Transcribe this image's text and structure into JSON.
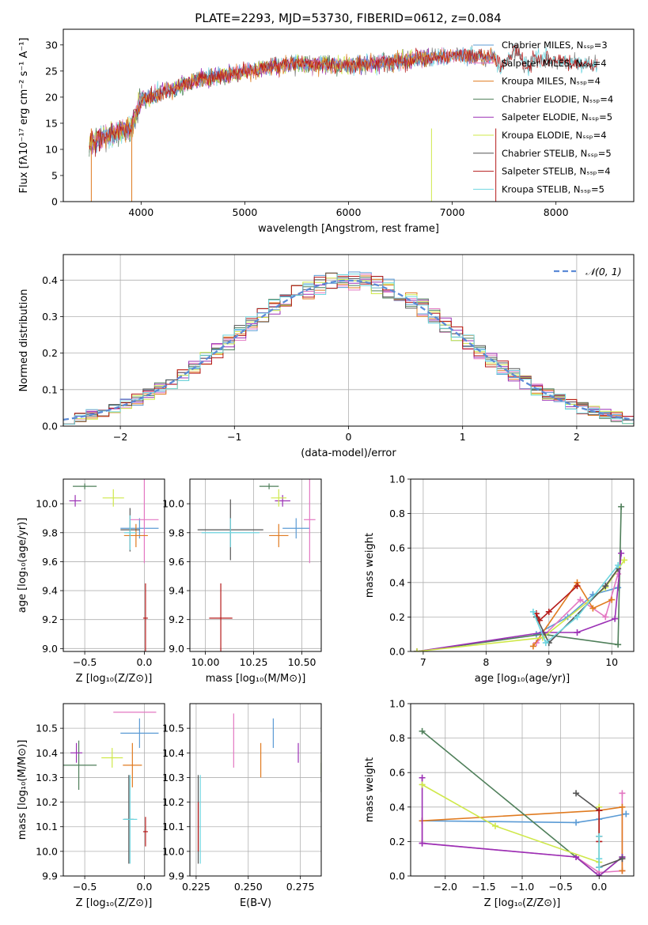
{
  "figure": {
    "title": "PLATE=2293, MJD=53730, FIBERID=0612, z=0.084"
  },
  "colors": {
    "Chabrier MILES": "#5b9bd5",
    "Salpeter MILES": "#e377c2",
    "Kroupa MILES": "#e07b20",
    "Chabrier ELODIE": "#4f7f5a",
    "Salpeter ELODIE": "#9b30b5",
    "Kroupa ELODIE": "#cfe84a",
    "Chabrier STELIB": "#555555",
    "Salpeter STELIB": "#b51a1a",
    "Kroupa STELIB": "#6fd6e0",
    "normal_curve": "#5b8ad6"
  },
  "chart_data": [
    {
      "id": "spectrum",
      "type": "line",
      "title": "PLATE=2293, MJD=53730, FIBERID=0612, z=0.084",
      "xlabel": "wavelength [Angstrom, rest frame]",
      "ylabel": "Flux [fλ10⁻¹⁷ erg cm⁻² s⁻¹ A⁻¹]",
      "xlim": [
        3250,
        8750
      ],
      "ylim": [
        0,
        33
      ],
      "xticks": [
        4000,
        5000,
        6000,
        7000,
        8000
      ],
      "yticks": [
        0,
        5,
        10,
        15,
        20,
        25,
        30
      ],
      "grid": false,
      "legend_position": "top-right",
      "legend": [
        "Chabrier MILES, N_SSP=3",
        "Salpeter MILES, N_SSP=4",
        "Kroupa MILES, N_SSP=4",
        "Chabrier ELODIE, N_SSP=4",
        "Salpeter ELODIE, N_SSP=5",
        "Kroupa ELODIE, N_SSP=4",
        "Chabrier STELIB, N_SSP=5",
        "Salpeter STELIB, N_SSP=4",
        "Kroupa STELIB, N_SSP=5"
      ],
      "continuum_x": [
        3500,
        3700,
        3900,
        4000,
        4300,
        4500,
        5000,
        5500,
        6000,
        6500,
        7000,
        7400,
        8000,
        8400
      ],
      "continuum_y": [
        11,
        13,
        14,
        19.5,
        21.5,
        23,
        25,
        26.5,
        26,
        27,
        28,
        27.5,
        27,
        26
      ]
    },
    {
      "id": "residuals",
      "type": "histogram",
      "xlabel": "(data-model)/error",
      "ylabel": "Normed distribution",
      "xlim": [
        -2.5,
        2.5
      ],
      "ylim": [
        0,
        0.47
      ],
      "xticks": [
        -2,
        -1,
        0,
        1,
        2
      ],
      "yticks": [
        0.0,
        0.1,
        0.2,
        0.3,
        0.4
      ],
      "grid": true,
      "legend_position": "top-right",
      "legend": [
        "𝒩(0, 1)"
      ],
      "bin_width": 0.1
    },
    {
      "id": "age_vs_Z",
      "type": "scatter",
      "xlabel": "Z [log₁₀(Z/Z⊙)]",
      "ylabel": "age  [log₁₀(age/yr)]",
      "xlim": [
        -0.68,
        0.17
      ],
      "ylim": [
        8.98,
        10.17
      ],
      "xticks": [
        -0.5,
        0.0
      ],
      "yticks": [
        9.0,
        9.2,
        9.4,
        9.6,
        9.8,
        10.0
      ],
      "grid": true,
      "points": [
        {
          "model": "Chabrier MILES",
          "x": -0.04,
          "y": 9.83,
          "xerr": 0.16,
          "yerr": 0.07
        },
        {
          "model": "Salpeter MILES",
          "x": 0.0,
          "y": 9.89,
          "xerr": 0.12,
          "yerr": 0.3
        },
        {
          "model": "Kroupa MILES",
          "x": -0.07,
          "y": 9.78,
          "xerr": 0.1,
          "yerr": 0.08
        },
        {
          "model": "Chabrier ELODIE",
          "x": -0.5,
          "y": 10.12,
          "xerr": 0.1,
          "yerr": 0.02
        },
        {
          "model": "Salpeter ELODIE",
          "x": -0.58,
          "y": 10.02,
          "xerr": 0.05,
          "yerr": 0.04
        },
        {
          "model": "Kroupa ELODIE",
          "x": -0.26,
          "y": 10.04,
          "xerr": 0.09,
          "yerr": 0.06
        },
        {
          "model": "Chabrier STELIB",
          "x": -0.12,
          "y": 9.82,
          "xerr": 0.08,
          "yerr": 0.15
        },
        {
          "model": "Salpeter STELIB",
          "x": 0.01,
          "y": 9.21,
          "xerr": 0.02,
          "yerr": 0.24
        },
        {
          "model": "Kroupa STELIB",
          "x": -0.12,
          "y": 9.8,
          "xerr": 0.05,
          "yerr": 0.12
        }
      ]
    },
    {
      "id": "age_vs_mass",
      "type": "scatter",
      "xlabel": "mass [log₁₀(M/M⊙)]",
      "ylabel": "",
      "xlim": [
        9.92,
        10.6
      ],
      "ylim": [
        8.98,
        10.17
      ],
      "xticks": [
        10.0,
        10.25,
        10.5
      ],
      "yticks": [
        9.0,
        9.2,
        9.4,
        9.6,
        9.8,
        10.0
      ],
      "grid": true,
      "points": [
        {
          "model": "Chabrier MILES",
          "x": 10.47,
          "y": 9.83,
          "xerr": 0.07,
          "yerr": 0.07
        },
        {
          "model": "Salpeter MILES",
          "x": 10.54,
          "y": 9.89,
          "xerr": 0.03,
          "yerr": 0.3
        },
        {
          "model": "Kroupa MILES",
          "x": 10.38,
          "y": 9.78,
          "xerr": 0.05,
          "yerr": 0.08
        },
        {
          "model": "Chabrier ELODIE",
          "x": 10.33,
          "y": 10.12,
          "xerr": 0.05,
          "yerr": 0.02
        },
        {
          "model": "Salpeter ELODIE",
          "x": 10.4,
          "y": 10.02,
          "xerr": 0.04,
          "yerr": 0.04
        },
        {
          "model": "Kroupa ELODIE",
          "x": 10.38,
          "y": 10.04,
          "xerr": 0.04,
          "yerr": 0.06
        },
        {
          "model": "Chabrier STELIB",
          "x": 10.13,
          "y": 9.82,
          "xerr": 0.17,
          "yerr": 0.21
        },
        {
          "model": "Salpeter STELIB",
          "x": 10.08,
          "y": 9.21,
          "xerr": 0.06,
          "yerr": 0.24
        },
        {
          "model": "Kroupa STELIB",
          "x": 10.13,
          "y": 9.8,
          "xerr": 0.15,
          "yerr": 0.1
        }
      ]
    },
    {
      "id": "weight_vs_age",
      "type": "line",
      "xlabel": "age  [log₁₀(age/yr)]",
      "ylabel": "mass weight",
      "xlim": [
        6.8,
        10.35
      ],
      "ylim": [
        0,
        1.0
      ],
      "xticks": [
        7,
        8,
        9,
        10
      ],
      "yticks": [
        0.0,
        0.2,
        0.4,
        0.6,
        0.8,
        1.0
      ],
      "grid": true,
      "series": [
        {
          "model": "Chabrier MILES",
          "x": [
            8.8,
            9.3,
            9.7,
            10.1
          ],
          "y": [
            0.1,
            0.2,
            0.33,
            0.37
          ]
        },
        {
          "model": "Salpeter MILES",
          "x": [
            8.8,
            9.5,
            9.9,
            10.1
          ],
          "y": [
            0.05,
            0.3,
            0.2,
            0.45
          ]
        },
        {
          "model": "Kroupa MILES",
          "x": [
            8.75,
            9.45,
            9.7,
            10.0
          ],
          "y": [
            0.03,
            0.4,
            0.25,
            0.3
          ]
        },
        {
          "model": "Chabrier ELODIE",
          "x": [
            10.15,
            10.1,
            8.9,
            6.9
          ],
          "y": [
            0.84,
            0.04,
            0.1,
            0.0
          ]
        },
        {
          "model": "Salpeter ELODIE",
          "x": [
            10.15,
            10.05,
            9.45,
            8.9,
            6.9
          ],
          "y": [
            0.57,
            0.19,
            0.11,
            0.11,
            0.0
          ]
        },
        {
          "model": "Kroupa ELODIE",
          "x": [
            10.2,
            9.9,
            8.9,
            6.9
          ],
          "y": [
            0.53,
            0.37,
            0.08,
            0.0
          ]
        },
        {
          "model": "Chabrier STELIB",
          "x": [
            8.8,
            9.0,
            9.9,
            10.1
          ],
          "y": [
            0.2,
            0.05,
            0.38,
            0.48
          ]
        },
        {
          "model": "Salpeter STELIB",
          "x": [
            8.8,
            8.85,
            9.0,
            9.45
          ],
          "y": [
            0.22,
            0.18,
            0.23,
            0.38
          ]
        },
        {
          "model": "Kroupa STELIB",
          "x": [
            8.75,
            8.95,
            9.45,
            10.1
          ],
          "y": [
            0.23,
            0.05,
            0.2,
            0.5
          ]
        }
      ]
    },
    {
      "id": "mass_vs_Z",
      "type": "scatter",
      "xlabel": "Z [log₁₀(Z/Z⊙)]",
      "ylabel": "mass [log₁₀(M/M⊙)]",
      "xlim": [
        -0.68,
        0.17
      ],
      "ylim": [
        9.9,
        10.6
      ],
      "xticks": [
        -0.5,
        0.0
      ],
      "yticks": [
        9.9,
        10.0,
        10.1,
        10.2,
        10.3,
        10.4,
        10.5
      ],
      "grid": true,
      "points": [
        {
          "model": "Chabrier MILES",
          "x": -0.04,
          "y": 10.48,
          "xerr": 0.16,
          "yerr": 0.06
        },
        {
          "model": "Salpeter MILES",
          "x": -0.08,
          "y": 10.565,
          "xerr": 0.18,
          "yerr": 0.0
        },
        {
          "model": "Kroupa MILES",
          "x": -0.1,
          "y": 10.35,
          "xerr": 0.08,
          "yerr": 0.09
        },
        {
          "model": "Chabrier ELODIE",
          "x": -0.55,
          "y": 10.35,
          "xerr": 0.15,
          "yerr": 0.1
        },
        {
          "model": "Salpeter ELODIE",
          "x": -0.57,
          "y": 10.4,
          "xerr": 0.05,
          "yerr": 0.04
        },
        {
          "model": "Kroupa ELODIE",
          "x": -0.27,
          "y": 10.38,
          "xerr": 0.09,
          "yerr": 0.04
        },
        {
          "model": "Chabrier STELIB",
          "x": -0.13,
          "y": 10.13,
          "xerr": 0.04,
          "yerr": 0.18
        },
        {
          "model": "Salpeter STELIB",
          "x": 0.01,
          "y": 10.08,
          "xerr": 0.02,
          "yerr": 0.06
        },
        {
          "model": "Kroupa STELIB",
          "x": -0.12,
          "y": 10.13,
          "xerr": 0.06,
          "yerr": 0.18
        }
      ]
    },
    {
      "id": "mass_vs_EBV",
      "type": "scatter",
      "xlabel": "E(B-V)",
      "ylabel": "",
      "xlim": [
        0.222,
        0.285
      ],
      "ylim": [
        9.9,
        10.6
      ],
      "xticks": [
        0.225,
        0.25,
        0.275
      ],
      "yticks": [
        9.9,
        10.0,
        10.1,
        10.2,
        10.3,
        10.4,
        10.5
      ],
      "grid": true,
      "points": [
        {
          "model": "Chabrier MILES",
          "x": 0.262,
          "y": 10.48,
          "xerr": 0,
          "yerr": 0.06
        },
        {
          "model": "Salpeter MILES",
          "x": 0.243,
          "y": 10.45,
          "xerr": 0,
          "yerr": 0.11
        },
        {
          "model": "Kroupa MILES",
          "x": 0.256,
          "y": 10.37,
          "xerr": 0,
          "yerr": 0.07
        },
        {
          "model": "Chabrier ELODIE",
          "x": 0.285,
          "y": 10.3,
          "xerr": 0,
          "yerr": 0.06
        },
        {
          "model": "Salpeter ELODIE",
          "x": 0.274,
          "y": 10.4,
          "xerr": 0,
          "yerr": 0.04
        },
        {
          "model": "Kroupa ELODIE",
          "x": 0.285,
          "y": 10.35,
          "xerr": 0,
          "yerr": 0.04
        },
        {
          "model": "Chabrier STELIB",
          "x": 0.226,
          "y": 10.13,
          "xerr": 0,
          "yerr": 0.18
        },
        {
          "model": "Salpeter STELIB",
          "x": 0.226,
          "y": 10.1,
          "xerr": 0,
          "yerr": 0.1
        },
        {
          "model": "Kroupa STELIB",
          "x": 0.227,
          "y": 10.13,
          "xerr": 0,
          "yerr": 0.18
        }
      ]
    },
    {
      "id": "weight_vs_Z",
      "type": "line",
      "xlabel": "Z [log₁₀(Z/Z⊙)]",
      "ylabel": "mass weight",
      "xlim": [
        -2.45,
        0.45
      ],
      "ylim": [
        0,
        1.0
      ],
      "xticks": [
        -2.0,
        -1.5,
        -1.0,
        -0.5,
        0.0
      ],
      "yticks": [
        0.0,
        0.2,
        0.4,
        0.6,
        0.8,
        1.0
      ],
      "grid": true,
      "series": [
        {
          "model": "Chabrier MILES",
          "x": [
            -2.3,
            -0.3,
            0.0,
            0.35
          ],
          "y": [
            0.32,
            0.31,
            0.33,
            0.36
          ]
        },
        {
          "model": "Salpeter MILES",
          "x": [
            -2.3,
            -2.3,
            -0.3,
            0.0,
            0.3,
            0.3
          ],
          "y": [
            0.32,
            0.19,
            0.11,
            0.02,
            0.03,
            0.48
          ]
        },
        {
          "model": "Kroupa MILES",
          "x": [
            -2.3,
            0.0,
            0.3,
            0.3
          ],
          "y": [
            0.32,
            0.38,
            0.4,
            0.03
          ]
        },
        {
          "model": "Chabrier ELODIE",
          "x": [
            -2.3,
            0.0,
            0.3
          ],
          "y": [
            0.84,
            0.0,
            0.11
          ]
        },
        {
          "model": "Salpeter ELODIE",
          "x": [
            -2.3,
            -2.3,
            -0.3,
            0.0,
            0.3
          ],
          "y": [
            0.57,
            0.19,
            0.11,
            0.0,
            0.11
          ]
        },
        {
          "model": "Kroupa ELODIE",
          "x": [
            -2.3,
            -1.35,
            0.0,
            0.0
          ],
          "y": [
            0.53,
            0.29,
            0.08,
            0.4
          ]
        },
        {
          "model": "Chabrier STELIB",
          "x": [
            -0.3,
            0.0,
            0.0,
            0.3
          ],
          "y": [
            0.48,
            0.38,
            0.05,
            0.1
          ]
        },
        {
          "model": "Salpeter STELIB",
          "x": [
            0.0,
            0.0,
            0.0
          ],
          "y": [
            0.38,
            0.23,
            0.2
          ]
        },
        {
          "model": "Kroupa STELIB",
          "x": [
            0.0,
            0.0,
            0.0
          ],
          "y": [
            0.23,
            0.05,
            0.1
          ]
        }
      ]
    }
  ]
}
